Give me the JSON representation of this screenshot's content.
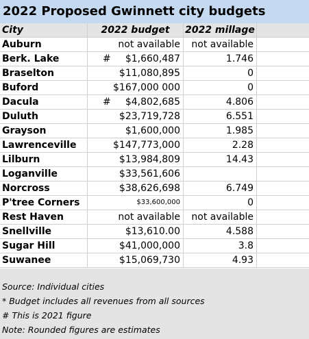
{
  "title": "2022 Proposed Gwinnett city budgets",
  "table": {
    "headers": [
      "City",
      "2022 budget",
      "2022 millage"
    ],
    "rows": [
      {
        "city": "Auburn",
        "budget": "not available",
        "millage": "not available"
      },
      {
        "city": "Berk. Lake",
        "budget_note": "#",
        "budget": "$1,660,487",
        "millage": "1.746"
      },
      {
        "city": "Braselton",
        "budget": "$11,080,895",
        "millage": "0"
      },
      {
        "city": "Buford",
        "budget": "$167,000 000",
        "millage": "0"
      },
      {
        "city": "Dacula",
        "budget_note": "#",
        "budget": "$4,802,685",
        "millage": "4.806"
      },
      {
        "city": "Duluth",
        "budget": "$23,719,728",
        "millage": "6.551"
      },
      {
        "city": "Grayson",
        "budget": "$1,600,000",
        "millage": "1.985"
      },
      {
        "city": "Lawrenceville",
        "budget": "$147,773,000",
        "millage": "2.28"
      },
      {
        "city": "Lilburn",
        "budget": "$13,984,809",
        "millage": "14.43"
      },
      {
        "city": "Loganville",
        "budget": "$33,561,606",
        "millage": null
      },
      {
        "city": "Norcross",
        "budget": "$38,626,698",
        "millage": "6.749"
      },
      {
        "city": "P'tree Corners",
        "budget": "$33,600,000",
        "millage": "0"
      },
      {
        "city": "Rest Haven",
        "budget": "not available",
        "millage": "not available"
      },
      {
        "city": "Snellville",
        "budget": "$13,610.00",
        "millage": "4.588"
      },
      {
        "city": "Sugar Hill",
        "budget": "$41,000,000",
        "millage": "3.8"
      },
      {
        "city": "Suwanee",
        "budget": "$15,069,730",
        "millage": "4.93"
      }
    ]
  },
  "notes": [
    "Source: Individual cities",
    "* Budget includes all revenues from all sources",
    "# This is 2021 figure",
    "Note: Rounded figures are estimates"
  ]
}
